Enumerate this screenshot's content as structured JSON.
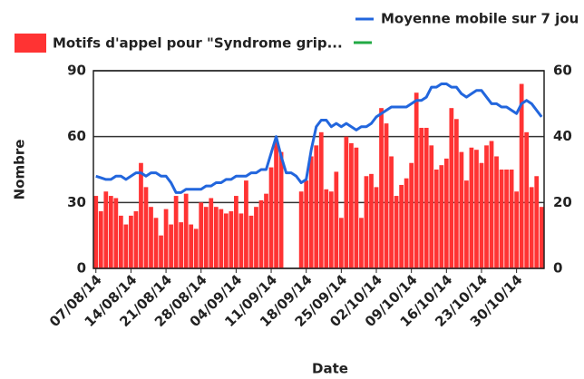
{
  "chart_data": {
    "type": "bar",
    "xlabel": "Date",
    "ylabel": "Nombre",
    "categories": [
      "07/08/14",
      null,
      null,
      null,
      null,
      null,
      null,
      "14/08/14",
      null,
      null,
      null,
      null,
      null,
      null,
      "21/08/14",
      null,
      null,
      null,
      null,
      null,
      null,
      "28/08/14",
      null,
      null,
      null,
      null,
      null,
      null,
      "04/09/14",
      null,
      null,
      null,
      null,
      null,
      null,
      "11/09/14",
      null,
      null,
      null,
      null,
      null,
      null,
      "18/09/14",
      null,
      null,
      null,
      null,
      null,
      null,
      "25/09/14",
      null,
      null,
      null,
      null,
      null,
      null,
      "02/10/14",
      null,
      null,
      null,
      null,
      null,
      null,
      "09/10/14",
      null,
      null,
      null,
      null,
      null,
      null,
      "16/10/14",
      null,
      null,
      null,
      null,
      null,
      null,
      "23/10/14",
      null,
      null,
      null,
      null,
      null,
      null,
      "30/10/14",
      null,
      null,
      null,
      null,
      null
    ],
    "series": [
      {
        "name": "Motifs d'appel pour \"Syndrome grip...",
        "type": "bar",
        "color": "#ff3333",
        "values": [
          33,
          26,
          35,
          33,
          32,
          24,
          20,
          24,
          26,
          48,
          37,
          28,
          23,
          15,
          27,
          20,
          33,
          21,
          34,
          20,
          18,
          30,
          28,
          32,
          28,
          27,
          25,
          26,
          33,
          25,
          40,
          24,
          28,
          31,
          34,
          46,
          58,
          53,
          null,
          null,
          null,
          35,
          40,
          51,
          56,
          62,
          36,
          35,
          44,
          23,
          60,
          57,
          55,
          23,
          42,
          43,
          37,
          73,
          66,
          51,
          33,
          38,
          41,
          48,
          80,
          64,
          64,
          56,
          45,
          47,
          50,
          73,
          68,
          53,
          40,
          55,
          54,
          48,
          56,
          58,
          51,
          45,
          45,
          45,
          35,
          84,
          62,
          37,
          42,
          28
        ]
      },
      {
        "name": "Moyenne mobile sur 7 jou",
        "type": "line",
        "color": "#2266dd",
        "axis": "y2",
        "values": [
          28,
          27.5,
          27,
          27,
          28,
          28,
          27,
          28,
          29,
          29,
          28,
          29,
          29,
          28,
          28,
          26,
          23,
          23,
          24,
          24,
          24,
          24,
          25,
          25,
          26,
          26,
          27,
          27,
          28,
          28,
          28,
          29,
          29,
          30,
          30,
          35,
          40,
          34,
          29,
          29,
          28,
          26,
          27,
          36,
          43,
          45,
          45,
          43,
          44,
          43,
          44,
          43,
          42,
          43,
          43,
          44,
          46,
          47,
          48,
          49,
          49,
          49,
          49,
          50,
          51,
          51,
          52,
          55,
          55,
          56,
          56,
          55,
          55,
          53,
          52,
          53,
          54,
          54,
          52,
          50,
          50,
          49,
          49,
          48,
          47,
          50,
          51,
          50,
          48,
          46
        ]
      }
    ],
    "ylim": [
      0,
      90
    ],
    "yticks": [
      0,
      30,
      60,
      90
    ],
    "y2lim": [
      0,
      60
    ],
    "y2ticks": [
      0,
      20,
      40,
      60
    ],
    "grid": true
  }
}
